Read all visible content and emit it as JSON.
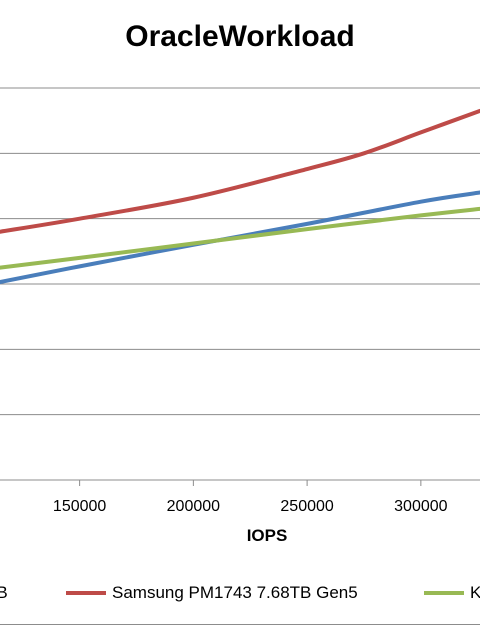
{
  "chart_data": {
    "type": "line",
    "title": "OracleWorkload",
    "xlabel": "IOPS",
    "ylabel": "",
    "x_ticks": [
      150000,
      200000,
      250000,
      300000
    ],
    "x_tick_labels": [
      "150000",
      "200000",
      "250000",
      "300000"
    ],
    "xlim": [
      115000,
      326000
    ],
    "ylim": [
      0,
      6
    ],
    "grid": true,
    "legend_position": "bottom",
    "series": [
      {
        "name": "",
        "legend_label_visible": "TB",
        "color": "#4a7ebb",
        "x": [
          115000,
          150000,
          200000,
          250000,
          300000,
          326000
        ],
        "y": [
          3.03,
          3.27,
          3.6,
          3.92,
          4.26,
          4.4
        ]
      },
      {
        "name": "Samsung PM1743 7.68TB Gen5",
        "legend_label_visible": "Samsung PM1743 7.68TB Gen5",
        "color": "#be4b48",
        "x": [
          115000,
          150000,
          200000,
          250000,
          275000,
          300000,
          326000
        ],
        "y": [
          3.8,
          4.0,
          4.32,
          4.76,
          5.0,
          5.32,
          5.65
        ]
      },
      {
        "name": "",
        "legend_label_visible": "K",
        "color": "#98b954",
        "x": [
          115000,
          150000,
          200000,
          250000,
          300000,
          326000
        ],
        "y": [
          3.25,
          3.4,
          3.62,
          3.84,
          4.05,
          4.15
        ]
      }
    ]
  }
}
